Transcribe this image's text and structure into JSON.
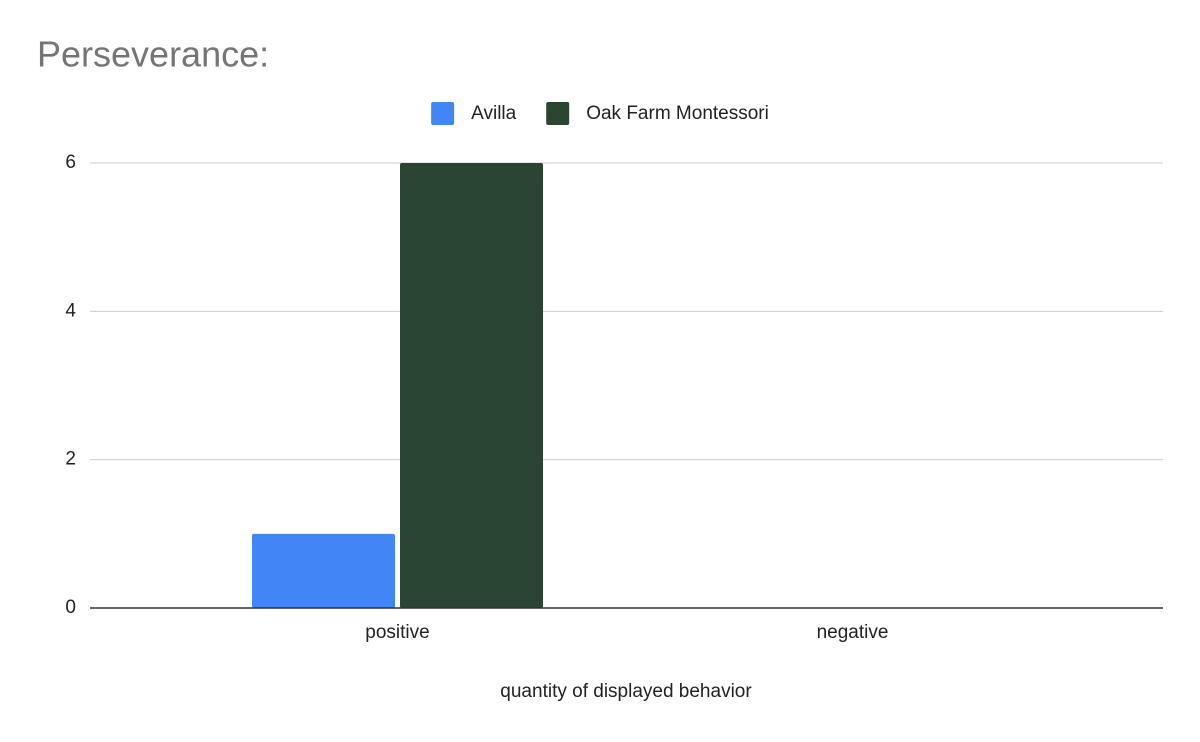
{
  "chart_data": {
    "type": "bar",
    "title": "Perseverance:",
    "x_label": "quantity of displayed  behavior",
    "categories": [
      "positive",
      "negative"
    ],
    "series": [
      {
        "name": "Avilla",
        "color": "#4285f4",
        "values": [
          1,
          0
        ]
      },
      {
        "name": "Oak Farm Montessori",
        "color": "#2a4633",
        "values": [
          6,
          0
        ]
      }
    ],
    "ylim": [
      0,
      6
    ],
    "yticks": [
      0,
      2,
      4,
      6
    ],
    "grid": true,
    "legend": "top"
  }
}
